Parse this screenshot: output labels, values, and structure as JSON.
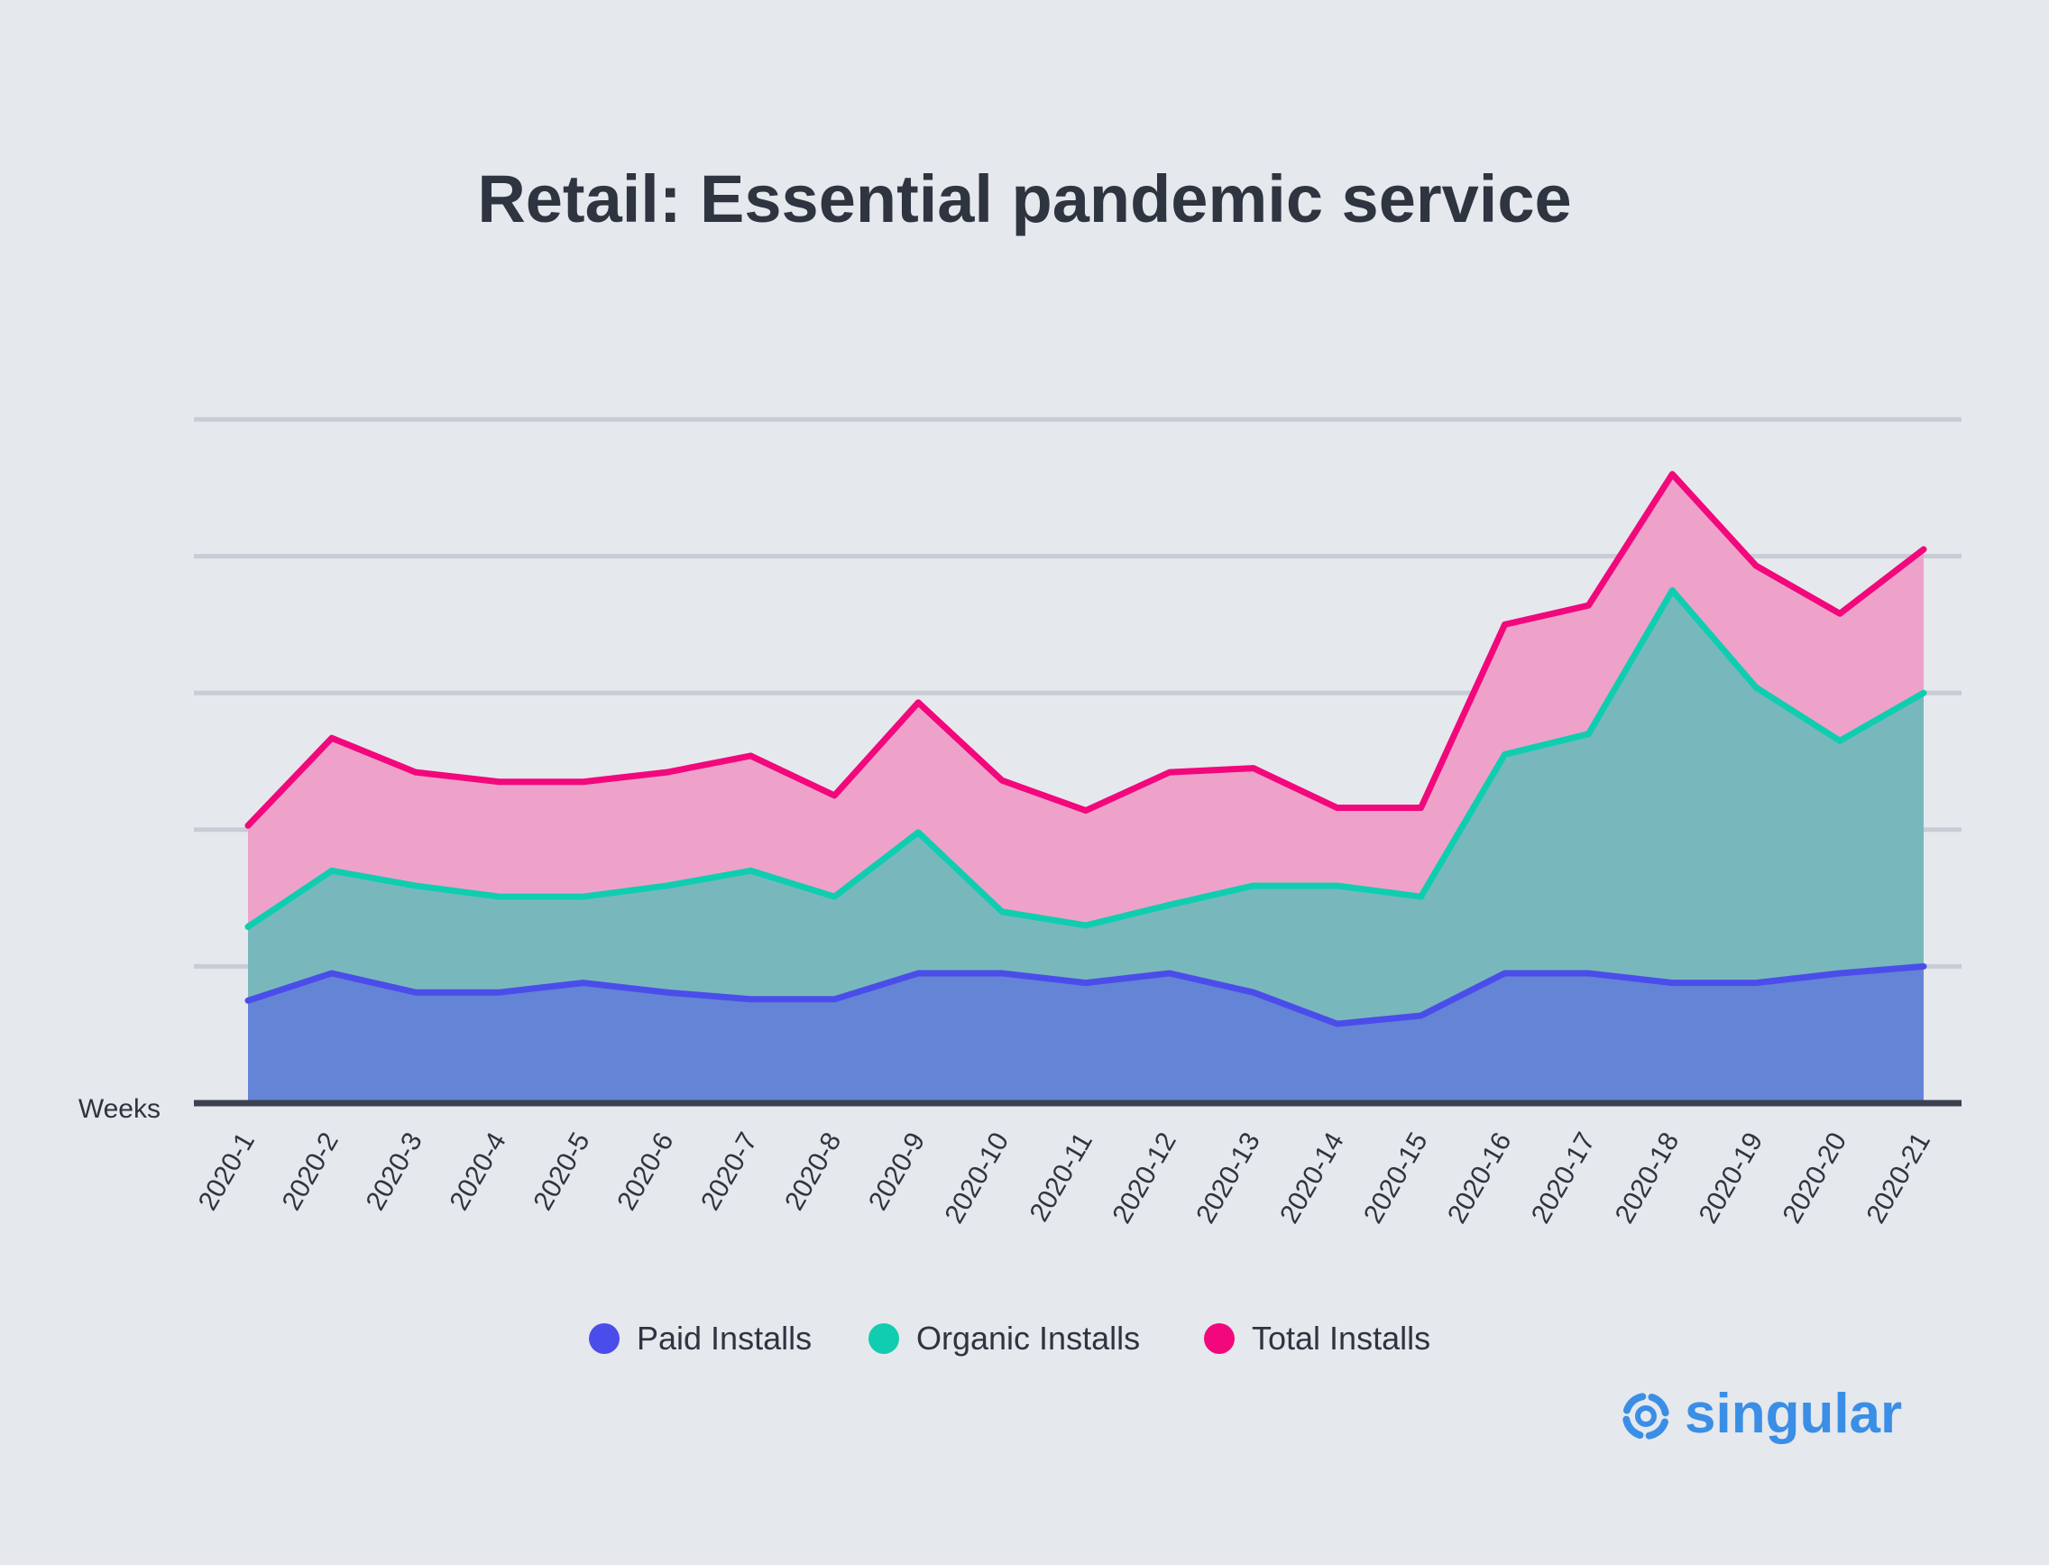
{
  "title": "Retail: Essential pandemic service",
  "colors": {
    "background": "#e5e8ec",
    "paid": "#4b4dea",
    "organic": "#10cdb0",
    "total": "#f2077c",
    "paid_fill": "#6484d6",
    "organic_fill": "#78b8bd",
    "total_fill": "#eea2c9",
    "gridline": "#c9ccd5",
    "axis": "#3b4150",
    "logo": "#3a8ee6"
  },
  "chart_data": {
    "type": "area",
    "xlabel": "Weeks",
    "ylabel": "",
    "ylim": [
      0,
      5
    ],
    "y_ticks_labeled": false,
    "grid": true,
    "legend_position": "bottom-center",
    "categories": [
      "2020-1",
      "2020-2",
      "2020-3",
      "2020-4",
      "2020-5",
      "2020-6",
      "2020-7",
      "2020-8",
      "2020-9",
      "2020-10",
      "2020-11",
      "2020-12",
      "2020-13",
      "2020-14",
      "2020-15",
      "2020-16",
      "2020-17",
      "2020-18",
      "2020-19",
      "2020-20",
      "2020-21"
    ],
    "series": [
      {
        "name": "Paid Installs",
        "color_key": "paid",
        "values": [
          0.75,
          0.95,
          0.81,
          0.81,
          0.88,
          0.81,
          0.76,
          0.76,
          0.95,
          0.95,
          0.88,
          0.95,
          0.81,
          0.58,
          0.64,
          0.95,
          0.95,
          0.88,
          0.88,
          0.95,
          1.0
        ]
      },
      {
        "name": "Organic Installs",
        "color_key": "organic",
        "values": [
          1.29,
          1.7,
          1.59,
          1.51,
          1.51,
          1.59,
          1.7,
          1.51,
          1.98,
          1.4,
          1.3,
          1.45,
          1.59,
          1.59,
          1.51,
          2.55,
          2.7,
          3.75,
          3.04,
          2.65,
          3.0
        ]
      },
      {
        "name": "Total Installs",
        "color_key": "total",
        "values": [
          2.03,
          2.67,
          2.42,
          2.35,
          2.35,
          2.42,
          2.54,
          2.25,
          2.93,
          2.36,
          2.14,
          2.42,
          2.45,
          2.16,
          2.16,
          3.5,
          3.64,
          4.6,
          3.93,
          3.58,
          4.05
        ]
      }
    ]
  },
  "brand": {
    "name": "singular",
    "icon": "singular-swirl-icon"
  }
}
